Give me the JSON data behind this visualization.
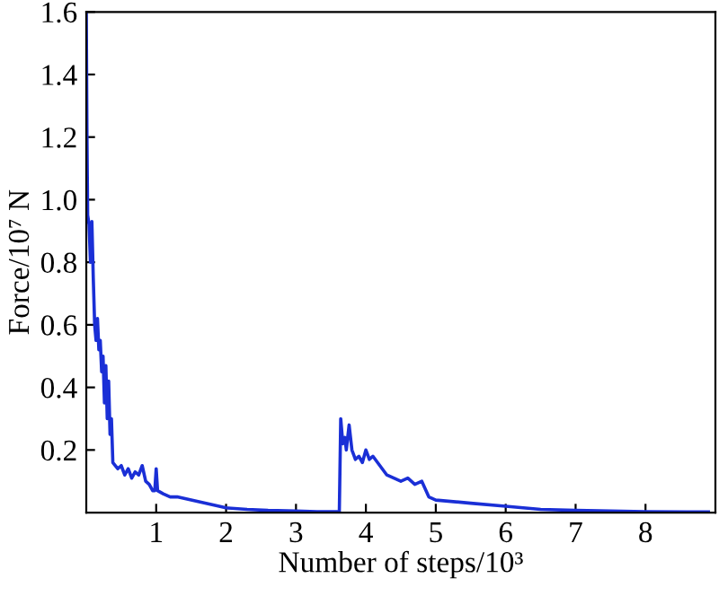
{
  "chart_data": {
    "type": "line",
    "xlabel": "Number of steps/10³",
    "ylabel": "Force/10⁷ N",
    "xlim": [
      0,
      9
    ],
    "ylim": [
      0,
      1.6
    ],
    "xticks": [
      1,
      2,
      3,
      4,
      5,
      6,
      7,
      8
    ],
    "yticks": [
      0.2,
      0.4,
      0.6,
      0.8,
      {
        "value": 1.0,
        "label": "1.0"
      },
      1.2,
      1.4,
      1.6
    ],
    "grid": false,
    "marker": "none",
    "line_style": "solid",
    "series": [
      {
        "color": "#1a2fd6",
        "x": [
          0,
          0.01,
          0.02,
          0.04,
          0.06,
          0.08,
          0.1,
          0.12,
          0.14,
          0.16,
          0.18,
          0.2,
          0.22,
          0.24,
          0.26,
          0.28,
          0.3,
          0.32,
          0.34,
          0.36,
          0.38,
          0.45,
          0.5,
          0.55,
          0.6,
          0.65,
          0.7,
          0.75,
          0.8,
          0.85,
          0.9,
          0.95,
          0.98,
          1.0,
          1.02,
          1.1,
          1.2,
          1.3,
          1.4,
          1.5,
          1.6,
          1.8,
          2.0,
          2.3,
          2.6,
          3.0,
          3.3,
          3.62,
          3.64,
          3.67,
          3.7,
          3.72,
          3.76,
          3.8,
          3.85,
          3.9,
          3.95,
          4.0,
          4.05,
          4.1,
          4.2,
          4.3,
          4.4,
          4.5,
          4.6,
          4.7,
          4.8,
          4.9,
          5.0,
          5.5,
          6.0,
          6.5,
          7.0,
          7.5,
          8.0,
          8.9
        ],
        "values": [
          1.6,
          1.2,
          0.95,
          0.92,
          0.8,
          0.93,
          0.75,
          0.6,
          0.55,
          0.62,
          0.52,
          0.55,
          0.45,
          0.5,
          0.35,
          0.47,
          0.3,
          0.42,
          0.25,
          0.3,
          0.16,
          0.14,
          0.15,
          0.12,
          0.14,
          0.11,
          0.13,
          0.12,
          0.15,
          0.1,
          0.09,
          0.07,
          0.07,
          0.14,
          0.07,
          0.06,
          0.05,
          0.05,
          0.045,
          0.04,
          0.035,
          0.025,
          0.015,
          0.01,
          0.007,
          0.005,
          0.003,
          0.003,
          0.3,
          0.22,
          0.24,
          0.2,
          0.28,
          0.2,
          0.17,
          0.18,
          0.16,
          0.2,
          0.17,
          0.18,
          0.15,
          0.12,
          0.11,
          0.1,
          0.11,
          0.09,
          0.1,
          0.05,
          0.04,
          0.03,
          0.02,
          0.01,
          0.007,
          0.005,
          0.003,
          0.002
        ]
      }
    ]
  }
}
